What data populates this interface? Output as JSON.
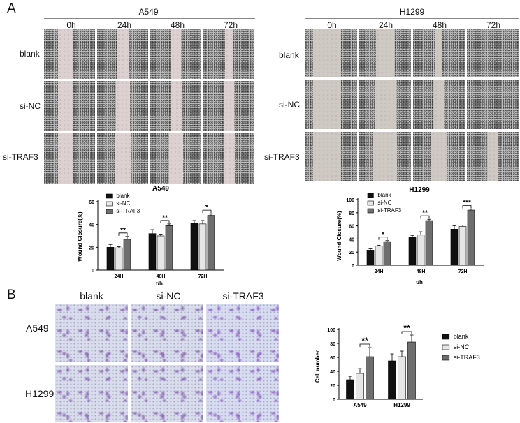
{
  "panel_a": {
    "letter": "A",
    "left": {
      "cell_line": "A549",
      "timepoints": [
        "0h",
        "24h",
        "48h",
        "72h"
      ],
      "groups": [
        "blank",
        "si-NC",
        "si-TRAF3"
      ]
    },
    "right": {
      "cell_line": "H1299",
      "timepoints": [
        "0h",
        "24h",
        "48h",
        "72h"
      ],
      "groups": [
        "blank",
        "si-NC",
        "si-TRAF3"
      ]
    }
  },
  "panel_b": {
    "letter": "B",
    "columns": [
      "blank",
      "si-NC",
      "si-TRAF3"
    ],
    "rows": [
      "A549",
      "H1299"
    ]
  },
  "colors": {
    "blank": "#111111",
    "si-NC": "#e6e6e6",
    "si-TRAF3": "#6e6e6e",
    "stain": "#7a4aa8"
  },
  "chart_data": [
    {
      "type": "bar",
      "title": "A549",
      "xlabel": "t/h",
      "ylabel": "Wound Closure(%)",
      "categories": [
        "24H",
        "48H",
        "72H"
      ],
      "ylim": [
        0,
        60
      ],
      "yticks": [
        0,
        20,
        40,
        60
      ],
      "series": [
        {
          "name": "blank",
          "values": [
            20,
            32,
            41
          ],
          "errors": [
            2.5,
            3.5,
            2.5
          ]
        },
        {
          "name": "si-NC",
          "values": [
            19.5,
            30,
            40.5
          ],
          "errors": [
            1,
            1.5,
            3
          ]
        },
        {
          "name": "si-TRAF3",
          "values": [
            27,
            39,
            48
          ],
          "errors": [
            2.5,
            1.5,
            1.5
          ]
        }
      ],
      "significance": [
        {
          "category": "24H",
          "label": "**"
        },
        {
          "category": "48H",
          "label": "**"
        },
        {
          "category": "72H",
          "label": "*"
        }
      ],
      "legend": "top-left"
    },
    {
      "type": "bar",
      "title": "H1299",
      "xlabel": "t/h",
      "ylabel": "Wound Closure(%)",
      "categories": [
        "24H",
        "48H",
        "72H"
      ],
      "ylim": [
        0,
        100
      ],
      "yticks": [
        0,
        20,
        40,
        60,
        80,
        100
      ],
      "series": [
        {
          "name": "blank",
          "values": [
            23,
            43,
            55
          ],
          "errors": [
            2,
            2.5,
            5
          ]
        },
        {
          "name": "si-NC",
          "values": [
            29,
            46,
            59
          ],
          "errors": [
            1.5,
            5,
            2
          ]
        },
        {
          "name": "si-TRAF3",
          "values": [
            36,
            68,
            84
          ],
          "errors": [
            1.5,
            2,
            1.5
          ]
        }
      ],
      "significance": [
        {
          "category": "24H",
          "label": "*"
        },
        {
          "category": "48H",
          "label": "**"
        },
        {
          "category": "72H",
          "label": "***"
        }
      ],
      "legend": "top-left"
    },
    {
      "type": "bar",
      "title": "",
      "xlabel": "",
      "ylabel": "Cell number",
      "categories": [
        "A549",
        "H1299"
      ],
      "ylim": [
        0,
        100
      ],
      "yticks": [
        0,
        20,
        40,
        60,
        80,
        100
      ],
      "series": [
        {
          "name": "blank",
          "values": [
            28,
            55
          ],
          "errors": [
            5,
            10
          ]
        },
        {
          "name": "si-NC",
          "values": [
            37,
            61
          ],
          "errors": [
            7,
            8
          ]
        },
        {
          "name": "si-TRAF3",
          "values": [
            61,
            82
          ],
          "errors": [
            13,
            10
          ]
        }
      ],
      "significance": [
        {
          "category": "A549",
          "label": "**"
        },
        {
          "category": "H1299",
          "label": "**"
        }
      ],
      "legend": "right"
    }
  ]
}
